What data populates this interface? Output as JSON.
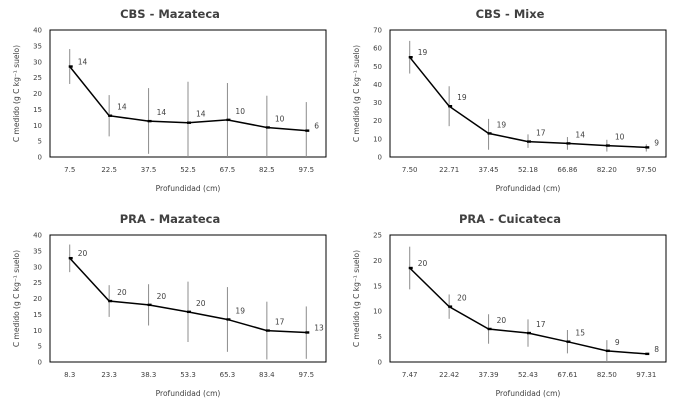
{
  "chart_data": [
    {
      "type": "line",
      "title": "CBS - Mazateca",
      "xlabel": "Profundidad (cm)",
      "ylabel": "C medido (g C kg⁻¹ suelo)",
      "categories": [
        "7.5",
        "22.5",
        "37.5",
        "52.5",
        "67.5",
        "82.5",
        "97.5"
      ],
      "values": [
        28.5,
        13,
        11.3,
        10.8,
        11.7,
        9.3,
        8.3
      ],
      "error_low": [
        23,
        6.5,
        1,
        0,
        0,
        0,
        0
      ],
      "error_high": [
        34,
        19.5,
        21.7,
        23.7,
        23.3,
        19.3,
        17.3
      ],
      "data_labels": [
        "14",
        "14",
        "14",
        "14",
        "10",
        "10",
        "6"
      ],
      "ylim": [
        0,
        40
      ],
      "yticks": [
        0,
        5,
        10,
        15,
        20,
        25,
        30,
        35,
        40
      ],
      "grid": false,
      "legend": "none"
    },
    {
      "type": "line",
      "title": "CBS - Mixe",
      "xlabel": "Profundidad (cm)",
      "ylabel": "C medido (g C kg⁻¹ suelo)",
      "categories": [
        "7.50",
        "22.71",
        "37.45",
        "52.18",
        "66.86",
        "82.20",
        "97.50"
      ],
      "values": [
        55,
        28,
        13,
        8.5,
        7.5,
        6.3,
        5.3
      ],
      "error_low": [
        46,
        17,
        4,
        5,
        4,
        3,
        3
      ],
      "error_high": [
        64,
        39,
        21,
        12.5,
        11,
        9.5,
        7
      ],
      "data_labels": [
        "19",
        "19",
        "19",
        "17",
        "14",
        "10",
        "9"
      ],
      "ylim": [
        0,
        70
      ],
      "yticks": [
        0,
        10,
        20,
        30,
        40,
        50,
        60,
        70
      ],
      "grid": false,
      "legend": "none"
    },
    {
      "type": "line",
      "title": "PRA - Mazateca",
      "xlabel": "Profundidad (cm)",
      "ylabel": "C medido (g C kg⁻¹ suelo)",
      "categories": [
        "8.3",
        "23.3",
        "38.3",
        "53.3",
        "65.3",
        "83.4",
        "97.5"
      ],
      "values": [
        32.7,
        19.2,
        18,
        15.8,
        13.4,
        9.9,
        9.3
      ],
      "error_low": [
        28.3,
        14.2,
        11.5,
        6.3,
        3.2,
        0.8,
        1
      ],
      "error_high": [
        37,
        24.2,
        24.5,
        25.3,
        23.6,
        19,
        17.5
      ],
      "data_labels": [
        "20",
        "20",
        "20",
        "20",
        "19",
        "17",
        "13"
      ],
      "ylim": [
        0,
        40
      ],
      "yticks": [
        0,
        5,
        10,
        15,
        20,
        25,
        30,
        35,
        40
      ],
      "grid": false,
      "legend": "none"
    },
    {
      "type": "line",
      "title": "PRA - Cuicateca",
      "xlabel": "Profundidad (cm)",
      "ylabel": "C medido (g C kg⁻¹ suelo)",
      "categories": [
        "7.47",
        "22.42",
        "37.39",
        "52.43",
        "67.61",
        "82.50",
        "97.31"
      ],
      "values": [
        18.5,
        10.9,
        6.5,
        5.7,
        4,
        2.2,
        1.6
      ],
      "error_low": [
        14.3,
        8.5,
        3.6,
        3,
        1.7,
        0,
        1.6
      ],
      "error_high": [
        22.7,
        13.3,
        9.4,
        8.4,
        6.3,
        4.3,
        1.6
      ],
      "data_labels": [
        "20",
        "20",
        "20",
        "17",
        "15",
        "9",
        "8"
      ],
      "ylim": [
        0,
        25
      ],
      "yticks": [
        0,
        5,
        10,
        15,
        20,
        25
      ],
      "grid": false,
      "legend": "none"
    }
  ],
  "colors": {
    "line": "#000000",
    "error_bar": "#8c8c8c",
    "axis": "#000000",
    "text": "#404040"
  }
}
